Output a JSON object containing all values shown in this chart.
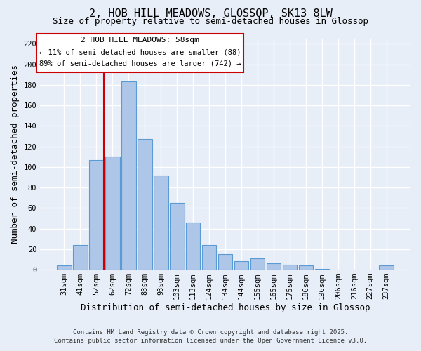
{
  "title": "2, HOB HILL MEADOWS, GLOSSOP, SK13 8LW",
  "subtitle": "Size of property relative to semi-detached houses in Glossop",
  "xlabel": "Distribution of semi-detached houses by size in Glossop",
  "ylabel": "Number of semi-detached properties",
  "bar_labels": [
    "31sqm",
    "41sqm",
    "52sqm",
    "62sqm",
    "72sqm",
    "83sqm",
    "93sqm",
    "103sqm",
    "113sqm",
    "124sqm",
    "134sqm",
    "144sqm",
    "155sqm",
    "165sqm",
    "175sqm",
    "186sqm",
    "196sqm",
    "206sqm",
    "216sqm",
    "227sqm",
    "237sqm"
  ],
  "bar_values": [
    4,
    24,
    107,
    110,
    183,
    127,
    92,
    65,
    46,
    24,
    15,
    8,
    11,
    6,
    5,
    4,
    1,
    0,
    0,
    0,
    4
  ],
  "bar_color": "#aec6e8",
  "bar_edge_color": "#5b9bd5",
  "vline_bar_index": 2,
  "vline_color": "#cc0000",
  "annotation_title": "2 HOB HILL MEADOWS: 58sqm",
  "annotation_line1": "← 11% of semi-detached houses are smaller (88)",
  "annotation_line2": "89% of semi-detached houses are larger (742) →",
  "annotation_box_color": "#ffffff",
  "annotation_box_edge": "#cc0000",
  "ylim": [
    0,
    225
  ],
  "yticks": [
    0,
    20,
    40,
    60,
    80,
    100,
    120,
    140,
    160,
    180,
    200,
    220
  ],
  "footer1": "Contains HM Land Registry data © Crown copyright and database right 2025.",
  "footer2": "Contains public sector information licensed under the Open Government Licence v3.0.",
  "bg_color": "#e8eef8",
  "grid_color": "#ffffff",
  "title_fontsize": 11,
  "subtitle_fontsize": 9,
  "axis_label_fontsize": 9,
  "tick_fontsize": 7.5,
  "footer_fontsize": 6.5
}
